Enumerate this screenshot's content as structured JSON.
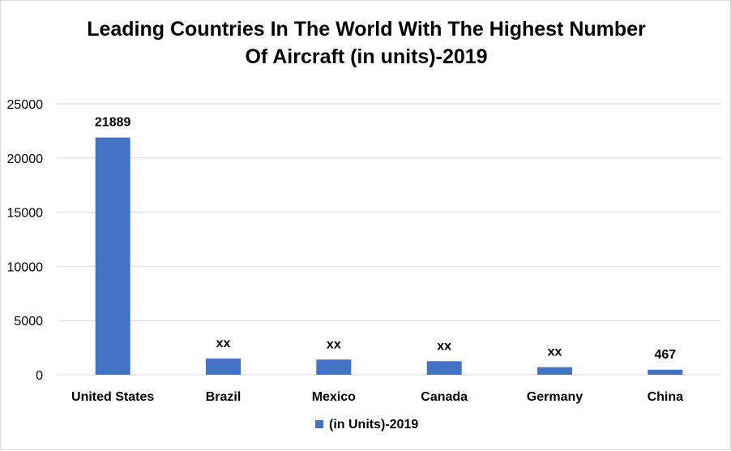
{
  "chart_data": {
    "type": "bar",
    "title_lines": [
      "Leading Countries In The World With The Highest Number",
      "Of Aircraft (in units)-2019"
    ],
    "categories": [
      "United States",
      "Brazil",
      "Mexico",
      "Canada",
      "Germany",
      "China"
    ],
    "series": [
      {
        "name": "(in Units)-2019",
        "color": "#4472c4",
        "values": [
          21889,
          1500,
          1400,
          1250,
          700,
          467
        ],
        "data_labels": [
          "21889",
          "xx",
          "xx",
          "xx",
          "xx",
          "467"
        ]
      }
    ],
    "y_ticks": [
      0,
      5000,
      10000,
      15000,
      20000,
      25000
    ],
    "ylim": [
      0,
      25000
    ],
    "grid": true,
    "legend_position": "bottom"
  }
}
